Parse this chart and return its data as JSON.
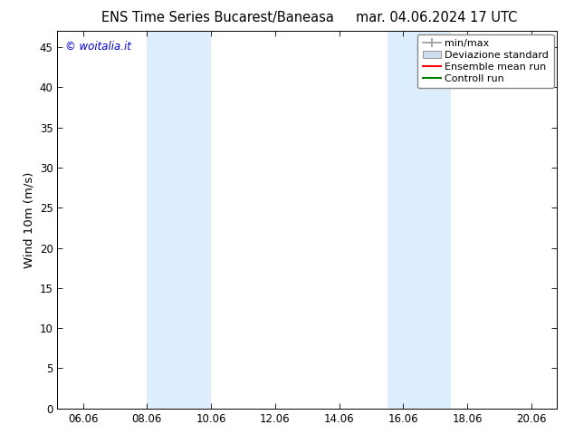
{
  "title_left": "ENS Time Series Bucarest/Baneasa",
  "title_right": "mar. 04.06.2024 17 UTC",
  "ylabel": "Wind 10m (m/s)",
  "watermark": "© woitalia.it",
  "watermark_color": "#0000dd",
  "background_color": "#ffffff",
  "plot_bg_color": "#ffffff",
  "shaded_bands": [
    {
      "xstart": 8.0,
      "xend": 10.0
    },
    {
      "xstart": 15.5,
      "xend": 17.5
    }
  ],
  "shaded_color": "#ddeeff",
  "ylim": [
    0,
    47
  ],
  "yticks": [
    0,
    5,
    10,
    15,
    20,
    25,
    30,
    35,
    40,
    45
  ],
  "xticks": [
    6.0,
    8.0,
    10.0,
    12.0,
    14.0,
    16.0,
    18.0,
    20.0
  ],
  "xticklabels": [
    "06.06",
    "08.06",
    "10.06",
    "12.06",
    "14.06",
    "16.06",
    "18.06",
    "20.06"
  ],
  "xlim": [
    5.2,
    20.8
  ],
  "legend_labels": [
    "min/max",
    "Deviazione standard",
    "Ensemble mean run",
    "Controll run"
  ],
  "legend_colors": [
    "#999999",
    "#ccdded",
    "#ff0000",
    "#008000"
  ],
  "font_family": "DejaVu Sans",
  "title_fontsize": 10.5,
  "tick_fontsize": 8.5,
  "legend_fontsize": 8.0,
  "ylabel_fontsize": 9.5,
  "watermark_fontsize": 8.5
}
